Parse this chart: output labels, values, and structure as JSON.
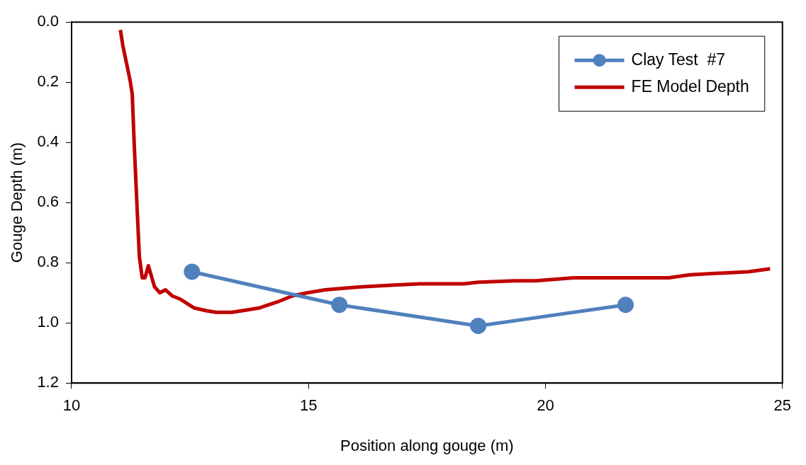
{
  "chart_data": {
    "type": "line",
    "xlabel": "Position along gouge (m)",
    "ylabel": "Gouge Depth (m)",
    "xlim": [
      10,
      25
    ],
    "xticks": [
      10,
      15,
      20,
      25
    ],
    "ylim": [
      1.2,
      0.0
    ],
    "yticks": [
      {
        "value": 0,
        "label": "0.0"
      },
      {
        "value": 0.2,
        "label": "0.2"
      },
      {
        "value": 0.4,
        "label": "0.4"
      },
      {
        "value": 0.6,
        "label": "0.6"
      },
      {
        "value": 0.8,
        "label": "0.8"
      },
      {
        "value": 1.0,
        "label": "1.0"
      },
      {
        "value": 1.2,
        "label": "1.2"
      }
    ],
    "grid": false,
    "legend": "top right",
    "line_style": "solid",
    "series": [
      {
        "name": "Clay Test  #7",
        "color": "#4f81bd",
        "marker": "circle",
        "x": [
          12.54,
          15.65,
          18.58,
          21.69
        ],
        "values": [
          0.83,
          0.94,
          1.01,
          0.94
        ]
      },
      {
        "name": "FE Model Depth",
        "color": "#c00000",
        "marker": "none",
        "x": [
          11.03,
          11.08,
          11.23,
          11.28,
          11.32,
          11.38,
          11.43,
          11.49,
          11.55,
          11.62,
          11.75,
          11.86,
          11.98,
          12.12,
          12.28,
          12.38,
          12.58,
          12.86,
          13.05,
          13.38,
          13.58,
          13.97,
          14.35,
          14.66,
          14.97,
          15.35,
          15.74,
          16.12,
          16.74,
          17.35,
          18.28,
          18.58,
          19.35,
          19.8,
          20.6,
          22.6,
          23.05,
          23.66,
          24.28,
          24.74
        ],
        "values": [
          0.026,
          0.077,
          0.19,
          0.24,
          0.4,
          0.61,
          0.78,
          0.85,
          0.85,
          0.81,
          0.88,
          0.9,
          0.89,
          0.91,
          0.92,
          0.93,
          0.95,
          0.96,
          0.965,
          0.965,
          0.96,
          0.95,
          0.93,
          0.91,
          0.9,
          0.89,
          0.885,
          0.88,
          0.875,
          0.87,
          0.87,
          0.865,
          0.86,
          0.86,
          0.85,
          0.85,
          0.84,
          0.835,
          0.83,
          0.82
        ]
      }
    ]
  }
}
